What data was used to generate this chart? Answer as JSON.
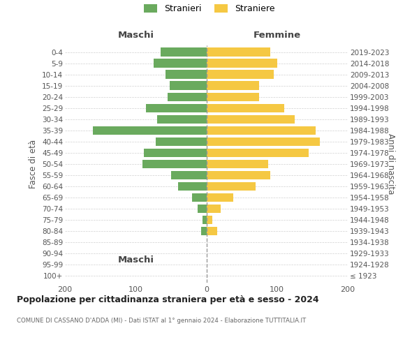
{
  "age_groups": [
    "100+",
    "95-99",
    "90-94",
    "85-89",
    "80-84",
    "75-79",
    "70-74",
    "65-69",
    "60-64",
    "55-59",
    "50-54",
    "45-49",
    "40-44",
    "35-39",
    "30-34",
    "25-29",
    "20-24",
    "15-19",
    "10-14",
    "5-9",
    "0-4"
  ],
  "birth_years": [
    "≤ 1923",
    "1924-1928",
    "1929-1933",
    "1934-1938",
    "1939-1943",
    "1944-1948",
    "1949-1953",
    "1954-1958",
    "1959-1963",
    "1964-1968",
    "1969-1973",
    "1974-1978",
    "1979-1983",
    "1984-1988",
    "1989-1993",
    "1994-1998",
    "1999-2003",
    "2004-2008",
    "2009-2013",
    "2014-2018",
    "2019-2023"
  ],
  "males": [
    0,
    0,
    0,
    0,
    7,
    5,
    12,
    20,
    40,
    50,
    90,
    88,
    72,
    160,
    70,
    85,
    55,
    52,
    58,
    75,
    65
  ],
  "females": [
    0,
    0,
    0,
    0,
    15,
    8,
    20,
    38,
    70,
    90,
    87,
    145,
    160,
    155,
    125,
    110,
    75,
    75,
    95,
    100,
    90
  ],
  "male_color": "#6aaa5e",
  "female_color": "#f5c843",
  "background_color": "#ffffff",
  "grid_color": "#d0d0d0",
  "title": "Popolazione per cittadinanza straniera per età e sesso - 2024",
  "subtitle": "COMUNE DI CASSANO D'ADDA (MI) - Dati ISTAT al 1° gennaio 2024 - Elaborazione TUTTITALIA.IT",
  "xlabel_left": "Maschi",
  "xlabel_right": "Femmine",
  "ylabel_left": "Fasce di età",
  "ylabel_right": "Anni di nascita",
  "legend_male": "Stranieri",
  "legend_female": "Straniere",
  "xlim": 200
}
